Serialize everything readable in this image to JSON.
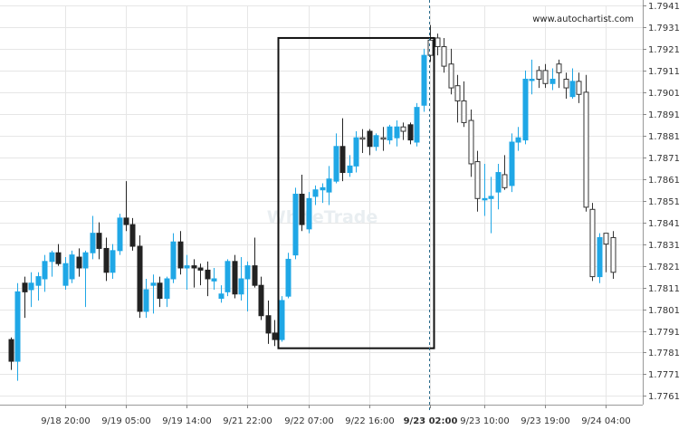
{
  "chart_data": {
    "type": "candlestick",
    "watermark": "WhiteTrade",
    "credit": "www.autochartist.com",
    "ylim": [
      1.7757,
      1.7941
    ],
    "y_ticks": [
      "1.7941",
      "1.7931",
      "1.7921",
      "1.7911",
      "1.7901",
      "1.7891",
      "1.7881",
      "1.7871",
      "1.7861",
      "1.7851",
      "1.7841",
      "1.7831",
      "1.7821",
      "1.7811",
      "1.7801",
      "1.7791",
      "1.7781",
      "1.7771",
      "1.7761"
    ],
    "x_ticks": [
      {
        "label": "9/18 20:00",
        "index": 8
      },
      {
        "label": "9/19 05:00",
        "index": 17
      },
      {
        "label": "9/19 14:00",
        "index": 26
      },
      {
        "label": "9/21 22:00",
        "index": 35
      },
      {
        "label": "9/22 07:00",
        "index": 44
      },
      {
        "label": "9/22 16:00",
        "index": 53
      },
      {
        "label": "9/23 02:00",
        "index": 62,
        "bold": true
      },
      {
        "label": "9/23 10:00",
        "index": 70
      },
      {
        "label": "9/23 19:00",
        "index": 79
      },
      {
        "label": "9/24 04:00",
        "index": 88
      }
    ],
    "colors": {
      "up": "#1fa7e6",
      "down": "#222222",
      "hollow": "#ffffff",
      "hollow_stroke": "#333333",
      "grid": "#e6e6e6",
      "box": "#111111",
      "marker": "#2b6c8c"
    },
    "pattern_box": {
      "start_index": 40,
      "end_index": 62,
      "top": 1.7926,
      "bottom": 1.7783
    },
    "marker_index": 62,
    "candles": [
      {
        "o": 1.7787,
        "h": 1.7788,
        "l": 1.7773,
        "c": 1.7777,
        "style": "down"
      },
      {
        "o": 1.7777,
        "h": 1.7813,
        "l": 1.7768,
        "c": 1.7809,
        "style": "up"
      },
      {
        "o": 1.7813,
        "h": 1.7816,
        "l": 1.7797,
        "c": 1.7809,
        "style": "down"
      },
      {
        "o": 1.781,
        "h": 1.7818,
        "l": 1.7802,
        "c": 1.7813,
        "style": "up"
      },
      {
        "o": 1.7812,
        "h": 1.7818,
        "l": 1.7805,
        "c": 1.7816,
        "style": "up"
      },
      {
        "o": 1.7815,
        "h": 1.7826,
        "l": 1.7809,
        "c": 1.7823,
        "style": "up"
      },
      {
        "o": 1.7823,
        "h": 1.7828,
        "l": 1.7816,
        "c": 1.7827,
        "style": "up"
      },
      {
        "o": 1.7827,
        "h": 1.7831,
        "l": 1.7821,
        "c": 1.7822,
        "style": "down"
      },
      {
        "o": 1.7822,
        "h": 1.7825,
        "l": 1.781,
        "c": 1.7812,
        "style": "up"
      },
      {
        "o": 1.7815,
        "h": 1.7828,
        "l": 1.7813,
        "c": 1.7826,
        "style": "up"
      },
      {
        "o": 1.7825,
        "h": 1.7829,
        "l": 1.7816,
        "c": 1.782,
        "style": "down"
      },
      {
        "o": 1.782,
        "h": 1.7828,
        "l": 1.7802,
        "c": 1.7827,
        "style": "up"
      },
      {
        "o": 1.7827,
        "h": 1.7844,
        "l": 1.7824,
        "c": 1.7836,
        "style": "up"
      },
      {
        "o": 1.7836,
        "h": 1.7841,
        "l": 1.7824,
        "c": 1.7829,
        "style": "down"
      },
      {
        "o": 1.7829,
        "h": 1.7834,
        "l": 1.7814,
        "c": 1.7818,
        "style": "down"
      },
      {
        "o": 1.7818,
        "h": 1.7831,
        "l": 1.7815,
        "c": 1.7828,
        "style": "up"
      },
      {
        "o": 1.7828,
        "h": 1.7845,
        "l": 1.7826,
        "c": 1.7843,
        "style": "up"
      },
      {
        "o": 1.7843,
        "h": 1.786,
        "l": 1.7837,
        "c": 1.784,
        "style": "down"
      },
      {
        "o": 1.784,
        "h": 1.7843,
        "l": 1.7828,
        "c": 1.783,
        "style": "down"
      },
      {
        "o": 1.783,
        "h": 1.7835,
        "l": 1.7797,
        "c": 1.78,
        "style": "down"
      },
      {
        "o": 1.78,
        "h": 1.7815,
        "l": 1.7797,
        "c": 1.781,
        "style": "up"
      },
      {
        "o": 1.7812,
        "h": 1.7817,
        "l": 1.7799,
        "c": 1.7813,
        "style": "up"
      },
      {
        "o": 1.7813,
        "h": 1.7816,
        "l": 1.7802,
        "c": 1.7806,
        "style": "down"
      },
      {
        "o": 1.7806,
        "h": 1.7816,
        "l": 1.7802,
        "c": 1.7815,
        "style": "up"
      },
      {
        "o": 1.7815,
        "h": 1.7836,
        "l": 1.7813,
        "c": 1.7832,
        "style": "up"
      },
      {
        "o": 1.7832,
        "h": 1.7837,
        "l": 1.7817,
        "c": 1.782,
        "style": "down"
      },
      {
        "o": 1.782,
        "h": 1.7826,
        "l": 1.781,
        "c": 1.7821,
        "style": "up"
      },
      {
        "o": 1.7821,
        "h": 1.7824,
        "l": 1.7811,
        "c": 1.782,
        "style": "down"
      },
      {
        "o": 1.782,
        "h": 1.7822,
        "l": 1.7812,
        "c": 1.7819,
        "style": "down"
      },
      {
        "o": 1.7819,
        "h": 1.7823,
        "l": 1.7807,
        "c": 1.7815,
        "style": "down"
      },
      {
        "o": 1.7815,
        "h": 1.782,
        "l": 1.781,
        "c": 1.7814,
        "style": "up"
      },
      {
        "o": 1.7808,
        "h": 1.7812,
        "l": 1.7804,
        "c": 1.7806,
        "style": "up"
      },
      {
        "o": 1.7809,
        "h": 1.7824,
        "l": 1.7807,
        "c": 1.7823,
        "style": "up"
      },
      {
        "o": 1.7823,
        "h": 1.7826,
        "l": 1.7806,
        "c": 1.7808,
        "style": "down"
      },
      {
        "o": 1.7808,
        "h": 1.7825,
        "l": 1.7805,
        "c": 1.7815,
        "style": "up"
      },
      {
        "o": 1.7815,
        "h": 1.7823,
        "l": 1.78,
        "c": 1.7821,
        "style": "up"
      },
      {
        "o": 1.7821,
        "h": 1.7834,
        "l": 1.7811,
        "c": 1.7812,
        "style": "down"
      },
      {
        "o": 1.7812,
        "h": 1.7816,
        "l": 1.7796,
        "c": 1.7798,
        "style": "down"
      },
      {
        "o": 1.7798,
        "h": 1.7805,
        "l": 1.7785,
        "c": 1.779,
        "style": "down"
      },
      {
        "o": 1.779,
        "h": 1.7796,
        "l": 1.7784,
        "c": 1.7787,
        "style": "down"
      },
      {
        "o": 1.7787,
        "h": 1.7807,
        "l": 1.7786,
        "c": 1.7805,
        "style": "up"
      },
      {
        "o": 1.7807,
        "h": 1.7827,
        "l": 1.7806,
        "c": 1.7824,
        "style": "up"
      },
      {
        "o": 1.7826,
        "h": 1.7857,
        "l": 1.7824,
        "c": 1.7854,
        "style": "up"
      },
      {
        "o": 1.7854,
        "h": 1.7863,
        "l": 1.7837,
        "c": 1.784,
        "style": "down"
      },
      {
        "o": 1.7838,
        "h": 1.7855,
        "l": 1.7836,
        "c": 1.7852,
        "style": "up"
      },
      {
        "o": 1.7853,
        "h": 1.7858,
        "l": 1.7849,
        "c": 1.7856,
        "style": "up"
      },
      {
        "o": 1.7857,
        "h": 1.7859,
        "l": 1.785,
        "c": 1.7856,
        "style": "up"
      },
      {
        "o": 1.7855,
        "h": 1.7867,
        "l": 1.7849,
        "c": 1.7861,
        "style": "up"
      },
      {
        "o": 1.786,
        "h": 1.7882,
        "l": 1.7859,
        "c": 1.7876,
        "style": "up"
      },
      {
        "o": 1.7876,
        "h": 1.7889,
        "l": 1.786,
        "c": 1.7864,
        "style": "down"
      },
      {
        "o": 1.7864,
        "h": 1.7872,
        "l": 1.7862,
        "c": 1.7867,
        "style": "up"
      },
      {
        "o": 1.7867,
        "h": 1.7883,
        "l": 1.7864,
        "c": 1.788,
        "style": "up"
      },
      {
        "o": 1.788,
        "h": 1.7884,
        "l": 1.7873,
        "c": 1.788,
        "style": "hollow"
      },
      {
        "o": 1.7883,
        "h": 1.7884,
        "l": 1.7872,
        "c": 1.7876,
        "style": "down"
      },
      {
        "o": 1.7876,
        "h": 1.7882,
        "l": 1.7874,
        "c": 1.7881,
        "style": "up"
      },
      {
        "o": 1.788,
        "h": 1.7885,
        "l": 1.7874,
        "c": 1.788,
        "style": "hollow"
      },
      {
        "o": 1.7879,
        "h": 1.7886,
        "l": 1.7877,
        "c": 1.7885,
        "style": "up"
      },
      {
        "o": 1.7885,
        "h": 1.7888,
        "l": 1.7876,
        "c": 1.788,
        "style": "up"
      },
      {
        "o": 1.7883,
        "h": 1.7887,
        "l": 1.7879,
        "c": 1.7885,
        "style": "hollow"
      },
      {
        "o": 1.7886,
        "h": 1.7887,
        "l": 1.7877,
        "c": 1.7879,
        "style": "down"
      },
      {
        "o": 1.7878,
        "h": 1.7896,
        "l": 1.7876,
        "c": 1.7894,
        "style": "up"
      },
      {
        "o": 1.7895,
        "h": 1.7921,
        "l": 1.7892,
        "c": 1.7918,
        "style": "up"
      },
      {
        "o": 1.7918,
        "h": 1.7932,
        "l": 1.7915,
        "c": 1.7925,
        "style": "hollow"
      },
      {
        "o": 1.7926,
        "h": 1.7928,
        "l": 1.7918,
        "c": 1.7922,
        "style": "hollow"
      },
      {
        "o": 1.7922,
        "h": 1.7926,
        "l": 1.791,
        "c": 1.7913,
        "style": "hollow"
      },
      {
        "o": 1.7914,
        "h": 1.7921,
        "l": 1.79,
        "c": 1.7903,
        "style": "hollow"
      },
      {
        "o": 1.7904,
        "h": 1.7909,
        "l": 1.7887,
        "c": 1.7897,
        "style": "hollow"
      },
      {
        "o": 1.7897,
        "h": 1.7906,
        "l": 1.7885,
        "c": 1.7887,
        "style": "hollow"
      },
      {
        "o": 1.7888,
        "h": 1.7893,
        "l": 1.7862,
        "c": 1.7868,
        "style": "hollow"
      },
      {
        "o": 1.7869,
        "h": 1.7874,
        "l": 1.7846,
        "c": 1.7852,
        "style": "hollow"
      },
      {
        "o": 1.7852,
        "h": 1.7868,
        "l": 1.7844,
        "c": 1.7852,
        "style": "up"
      },
      {
        "o": 1.7852,
        "h": 1.7862,
        "l": 1.7836,
        "c": 1.7853,
        "style": "up"
      },
      {
        "o": 1.7855,
        "h": 1.7868,
        "l": 1.7847,
        "c": 1.7864,
        "style": "up"
      },
      {
        "o": 1.7863,
        "h": 1.7872,
        "l": 1.7856,
        "c": 1.7857,
        "style": "hollow"
      },
      {
        "o": 1.7858,
        "h": 1.7882,
        "l": 1.7855,
        "c": 1.7878,
        "style": "up"
      },
      {
        "o": 1.7878,
        "h": 1.7885,
        "l": 1.7874,
        "c": 1.788,
        "style": "up"
      },
      {
        "o": 1.7879,
        "h": 1.7911,
        "l": 1.7877,
        "c": 1.7907,
        "style": "up"
      },
      {
        "o": 1.7907,
        "h": 1.7916,
        "l": 1.79,
        "c": 1.7907,
        "style": "up"
      },
      {
        "o": 1.7907,
        "h": 1.7913,
        "l": 1.7903,
        "c": 1.7911,
        "style": "hollow"
      },
      {
        "o": 1.7911,
        "h": 1.7914,
        "l": 1.7903,
        "c": 1.7905,
        "style": "hollow"
      },
      {
        "o": 1.7905,
        "h": 1.7912,
        "l": 1.7902,
        "c": 1.7907,
        "style": "up"
      },
      {
        "o": 1.791,
        "h": 1.7916,
        "l": 1.7903,
        "c": 1.7914,
        "style": "hollow"
      },
      {
        "o": 1.7907,
        "h": 1.791,
        "l": 1.7898,
        "c": 1.7903,
        "style": "hollow"
      },
      {
        "o": 1.7906,
        "h": 1.7912,
        "l": 1.7898,
        "c": 1.7899,
        "style": "up"
      },
      {
        "o": 1.7906,
        "h": 1.791,
        "l": 1.7896,
        "c": 1.79,
        "style": "hollow"
      },
      {
        "o": 1.7901,
        "h": 1.7909,
        "l": 1.7846,
        "c": 1.7848,
        "style": "hollow"
      },
      {
        "o": 1.7847,
        "h": 1.785,
        "l": 1.7814,
        "c": 1.7816,
        "style": "hollow"
      },
      {
        "o": 1.7816,
        "h": 1.7836,
        "l": 1.7813,
        "c": 1.7834,
        "style": "up"
      },
      {
        "o": 1.7831,
        "h": 1.7836,
        "l": 1.7818,
        "c": 1.7836,
        "style": "hollow"
      },
      {
        "o": 1.7834,
        "h": 1.7837,
        "l": 1.7815,
        "c": 1.7818,
        "style": "hollow"
      }
    ]
  }
}
